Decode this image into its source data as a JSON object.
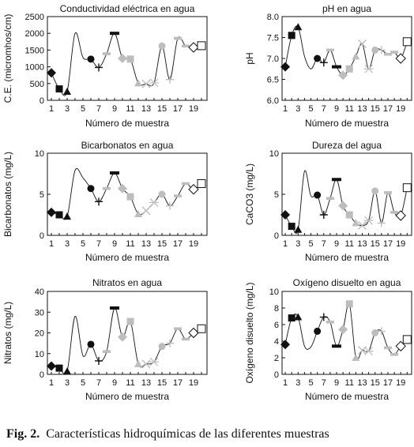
{
  "caption": {
    "label": "Fig. 2.",
    "text": "Características hidroquímicas de las diferentes muestras"
  },
  "colors": {
    "black": "#111111",
    "gray": "#bdbdbd",
    "line": "#111111"
  },
  "marker_sequence": [
    "diamond-black",
    "square-black",
    "triangle-black",
    "x-cross",
    "star-cross",
    "circle-black",
    "plus",
    "minus-gray",
    "bar-black",
    "diamond-gray",
    "square-gray",
    "triangle-gray",
    "x-gray",
    "star-gray",
    "circle-gray",
    "plus-gray",
    "minus-gray",
    "minus-gray",
    "diamond-open",
    "square-open"
  ],
  "chart_data": [
    {
      "type": "line",
      "title": "Conductividad eléctrica en agua",
      "xlabel": "Número de muestra",
      "ylabel": "C.E. (micromhos/cm)",
      "x": [
        1,
        2,
        3,
        4,
        5,
        6,
        7,
        8,
        9,
        10,
        11,
        12,
        13,
        14,
        15,
        16,
        17,
        18,
        19,
        20
      ],
      "values": [
        820,
        340,
        260,
        2000,
        1280,
        1230,
        980,
        1390,
        2000,
        1250,
        1230,
        510,
        490,
        520,
        1620,
        620,
        1850,
        1620,
        1580,
        1630
      ],
      "ylim": [
        0,
        2500
      ],
      "yticks": [
        0,
        500,
        1000,
        1500,
        2000,
        2500
      ],
      "ytick_labels": [
        "0",
        "500",
        "1000",
        "1500",
        "2000",
        "2500"
      ],
      "xticks": [
        1,
        3,
        5,
        7,
        9,
        11,
        13,
        15,
        17,
        19
      ]
    },
    {
      "type": "line",
      "title": "pH en agua",
      "xlabel": "Número de muestra",
      "ylabel": "pH",
      "x": [
        1,
        2,
        3,
        4,
        5,
        6,
        7,
        8,
        9,
        10,
        11,
        12,
        13,
        14,
        15,
        16,
        17,
        18,
        19,
        20
      ],
      "values": [
        6.8,
        7.55,
        7.75,
        7.05,
        6.75,
        7.0,
        6.9,
        7.2,
        6.8,
        6.6,
        6.75,
        7.05,
        7.35,
        6.75,
        7.2,
        7.2,
        7.1,
        7.15,
        7.0,
        7.4
      ],
      "ylim": [
        6.0,
        8.0
      ],
      "yticks": [
        6.0,
        6.5,
        7.0,
        7.5,
        8.0
      ],
      "ytick_labels": [
        "6.0",
        "6.5",
        "7.0",
        "7.5",
        "8.0"
      ],
      "xticks": [
        1,
        3,
        5,
        7,
        9,
        11,
        13,
        15,
        17,
        19
      ]
    },
    {
      "type": "line",
      "title": "Bicarbonatos en agua",
      "xlabel": "Número de muestra",
      "ylabel": "Bicarbonatos (mg/L)",
      "x": [
        1,
        2,
        3,
        4,
        5,
        6,
        7,
        8,
        9,
        10,
        11,
        12,
        13,
        14,
        15,
        16,
        17,
        18,
        19,
        20
      ],
      "values": [
        2.8,
        2.5,
        2.3,
        7.9,
        7.0,
        5.7,
        4.1,
        5.7,
        7.6,
        5.7,
        4.7,
        2.6,
        3.0,
        4.0,
        5.0,
        3.6,
        4.8,
        6.3,
        5.6,
        6.3
      ],
      "ylim": [
        0,
        10
      ],
      "yticks": [
        0,
        5,
        10
      ],
      "ytick_labels": [
        "0",
        "5",
        "10"
      ],
      "xticks": [
        1,
        3,
        5,
        7,
        9,
        11,
        13,
        15,
        17,
        19
      ]
    },
    {
      "type": "line",
      "title": "Dureza del agua",
      "xlabel": "Número de muestra",
      "ylabel": "CaCO3 (mg/L)",
      "x": [
        1,
        2,
        3,
        4,
        5,
        6,
        7,
        8,
        9,
        10,
        11,
        12,
        13,
        14,
        15,
        16,
        17,
        18,
        19,
        20
      ],
      "values": [
        2.5,
        1.1,
        0.7,
        7.8,
        4.8,
        4.9,
        2.5,
        4.5,
        6.8,
        3.6,
        2.5,
        1.5,
        1.2,
        1.8,
        5.4,
        1.5,
        5.2,
        2.8,
        2.4,
        5.8
      ],
      "ylim": [
        0,
        10
      ],
      "yticks": [
        0,
        5,
        10
      ],
      "ytick_labels": [
        "0",
        "5",
        "10"
      ],
      "xticks": [
        1,
        3,
        5,
        7,
        9,
        11,
        13,
        15,
        17,
        19
      ]
    },
    {
      "type": "line",
      "title": "Nitratos en agua",
      "xlabel": "Número de muestra",
      "ylabel": "Nitratos (mg/L)",
      "x": [
        1,
        2,
        3,
        4,
        5,
        6,
        7,
        8,
        9,
        10,
        11,
        12,
        13,
        14,
        15,
        16,
        17,
        18,
        19,
        20
      ],
      "values": [
        4,
        3,
        1.5,
        28,
        9,
        14.5,
        6.5,
        11,
        32,
        18,
        25.5,
        5,
        5,
        6,
        13.5,
        15,
        22,
        17,
        20,
        22
      ],
      "ylim": [
        0,
        40
      ],
      "yticks": [
        0,
        10,
        20,
        30,
        40
      ],
      "ytick_labels": [
        "0",
        "10",
        "20",
        "30",
        "40"
      ],
      "xticks": [
        1,
        3,
        5,
        7,
        9,
        11,
        13,
        15,
        17,
        19
      ]
    },
    {
      "type": "line",
      "title": "Oxígeno disuelto en agua",
      "xlabel": "Número de muestra",
      "ylabel": "Oxígeno disuelto (mg/L)",
      "x": [
        1,
        2,
        3,
        4,
        5,
        6,
        7,
        8,
        9,
        10,
        11,
        12,
        13,
        14,
        15,
        16,
        17,
        18,
        19,
        20
      ],
      "values": [
        3.6,
        6.8,
        6.9,
        3.4,
        3.3,
        5.2,
        6.9,
        6.3,
        3.4,
        5.4,
        8.5,
        2.0,
        2.9,
        2.8,
        5.0,
        5.2,
        3.2,
        2.4,
        3.4,
        4.2
      ],
      "ylim": [
        0,
        10
      ],
      "yticks": [
        0,
        2,
        4,
        6,
        8,
        10
      ],
      "ytick_labels": [
        "0",
        "2",
        "4",
        "6",
        "8",
        "10"
      ],
      "xticks": [
        1,
        3,
        5,
        7,
        9,
        11,
        13,
        15,
        17,
        19
      ]
    }
  ]
}
